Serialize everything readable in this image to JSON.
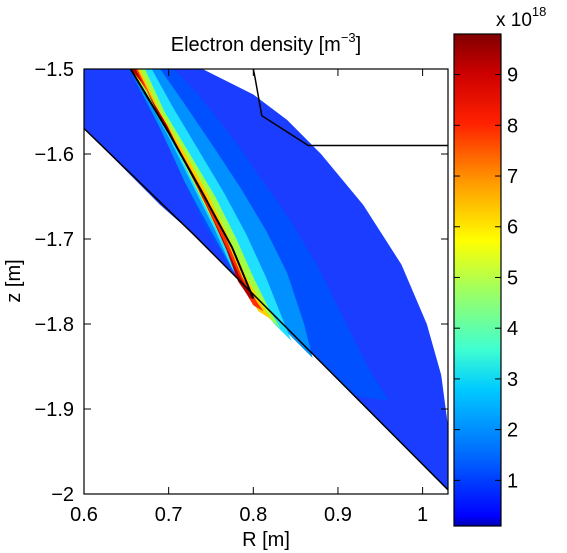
{
  "chart_data": {
    "type": "heatmap",
    "title": "Electron density [m",
    "title_sup": "−3",
    "title_end": "]",
    "xlabel": "R [m]",
    "ylabel": "z [m]",
    "xlim": [
      0.6,
      1.03
    ],
    "ylim": [
      -2.0,
      -1.5
    ],
    "x_ticks": [
      0.6,
      0.7,
      0.8,
      0.9,
      1
    ],
    "x_tick_labels": [
      "0.6",
      "0.7",
      "0.8",
      "0.9",
      "1"
    ],
    "y_ticks": [
      -1.5,
      -1.6,
      -1.7,
      -1.8,
      -1.9,
      -2.0
    ],
    "y_tick_labels": [
      "−1.5",
      "−1.6",
      "−1.7",
      "−1.8",
      "−1.9",
      "−2"
    ],
    "colorbar": {
      "colormap": "jet",
      "range": [
        1e+17,
        9.8e+18
      ],
      "ticks": [
        1,
        2,
        3,
        4,
        5,
        6,
        7,
        8,
        9
      ],
      "tick_labels": [
        "1",
        "2",
        "3",
        "4",
        "5",
        "6",
        "7",
        "8",
        "9"
      ],
      "multiplier_base": "x 10",
      "multiplier_exp": "18"
    },
    "peak_value": 9.8e+18,
    "separatrix_leg": {
      "name": "",
      "points": [
        [
          0.655,
          -1.5
        ],
        [
          0.7,
          -1.575
        ],
        [
          0.745,
          -1.655
        ],
        [
          0.775,
          -1.71
        ],
        [
          0.8,
          -1.77
        ]
      ]
    },
    "wall_lines": [
      [
        [
          0.6,
          -1.57
        ],
        [
          0.73,
          -1.695
        ],
        [
          1.03,
          -1.995
        ]
      ],
      [
        [
          0.8,
          -1.5
        ],
        [
          0.802,
          -1.51
        ],
        [
          0.81,
          -1.555
        ],
        [
          0.865,
          -1.59
        ],
        [
          1.03,
          -1.59
        ]
      ]
    ],
    "grid": false
  }
}
